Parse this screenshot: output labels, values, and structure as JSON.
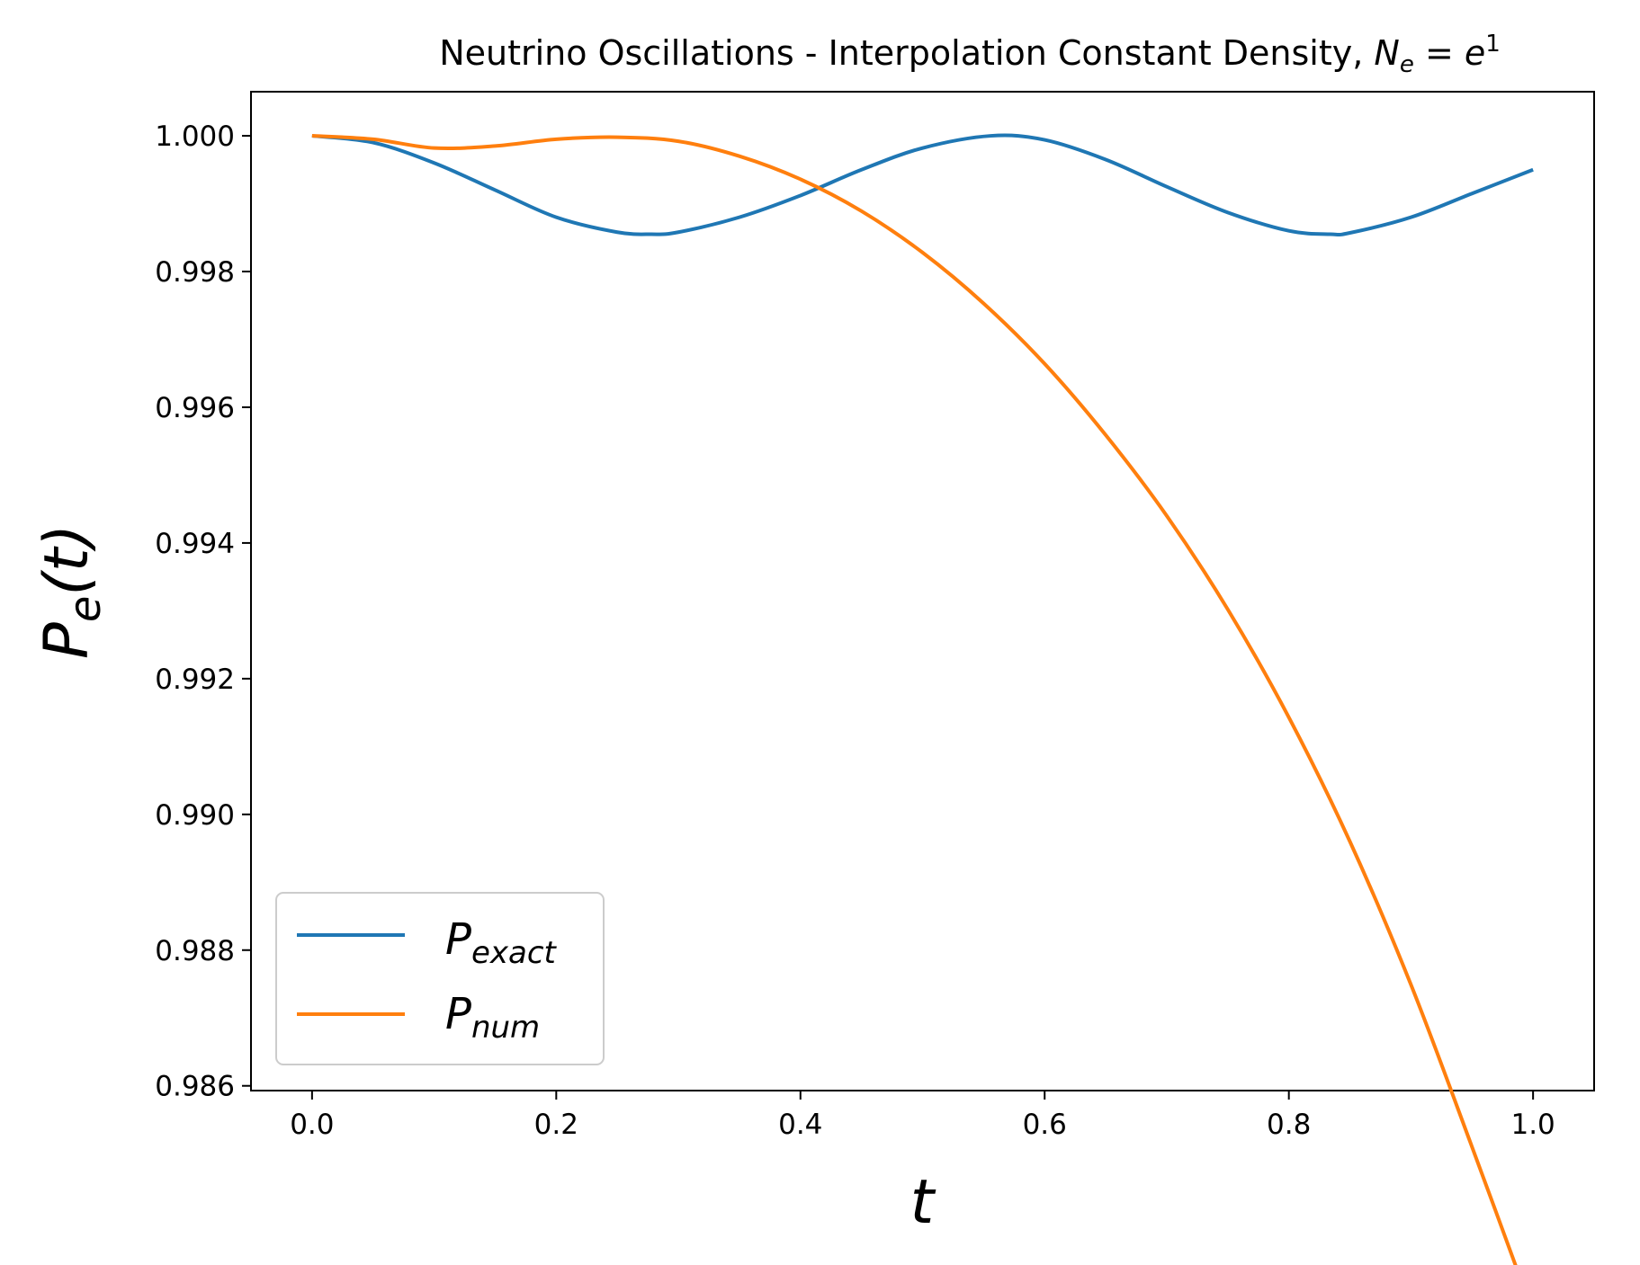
{
  "chart_data": {
    "type": "line",
    "title": {
      "text": "Neutrino Oscillations - Interpolation Constant Density, ",
      "math_base": "N",
      "math_sub": "e",
      "math_eq": " = ",
      "math_rhs": "e",
      "math_sup": "1"
    },
    "xlabel": "t",
    "ylabel": {
      "base": "P",
      "sub": "e",
      "arg": "(t)"
    },
    "xlim": [
      -0.05,
      1.05
    ],
    "ylim": [
      0.98593,
      1.00065
    ],
    "xticks": [
      0.0,
      0.2,
      0.4,
      0.6,
      0.8,
      1.0
    ],
    "xtick_labels": [
      "0.0",
      "0.2",
      "0.4",
      "0.6",
      "0.8",
      "1.0"
    ],
    "yticks": [
      0.986,
      0.988,
      0.99,
      0.992,
      0.994,
      0.996,
      0.998,
      1.0
    ],
    "ytick_labels": [
      "0.986",
      "0.988",
      "0.990",
      "0.992",
      "0.994",
      "0.996",
      "0.998",
      "1.000"
    ],
    "grid": false,
    "legend_position": "bottom-left",
    "series": [
      {
        "name": "P_exact",
        "legend_base": "P",
        "legend_sub": "exact",
        "color": "#1f77b4",
        "x": [
          0.0,
          0.05,
          0.1,
          0.15,
          0.2,
          0.25,
          0.278,
          0.3,
          0.35,
          0.4,
          0.45,
          0.5,
          0.556,
          0.6,
          0.65,
          0.7,
          0.75,
          0.8,
          0.834,
          0.85,
          0.9,
          0.95,
          1.0
        ],
        "y": [
          1.0,
          0.9999,
          0.9996,
          0.9992,
          0.9988,
          0.99858,
          0.99855,
          0.99858,
          0.9988,
          0.99912,
          0.9995,
          0.99982,
          1.0,
          0.99994,
          0.99965,
          0.99925,
          0.99887,
          0.9986,
          0.99855,
          0.99857,
          0.9988,
          0.99915,
          0.9995
        ]
      },
      {
        "name": "P_num",
        "legend_base": "P",
        "legend_sub": "num",
        "color": "#ff7f0e",
        "x": [
          0.0,
          0.05,
          0.1,
          0.15,
          0.2,
          0.25,
          0.3,
          0.35,
          0.4,
          0.45,
          0.5,
          0.55,
          0.6,
          0.65,
          0.7,
          0.75,
          0.8,
          0.85,
          0.9,
          0.95,
          1.0
        ],
        "y": [
          1.0,
          0.99995,
          0.99982,
          0.99985,
          0.99995,
          0.99998,
          0.99992,
          0.9997,
          0.99936,
          0.99889,
          0.99828,
          0.99753,
          0.99664,
          0.99559,
          0.9944,
          0.99302,
          0.99143,
          0.9896,
          0.98749,
          0.9851,
          0.98265
        ]
      }
    ]
  }
}
